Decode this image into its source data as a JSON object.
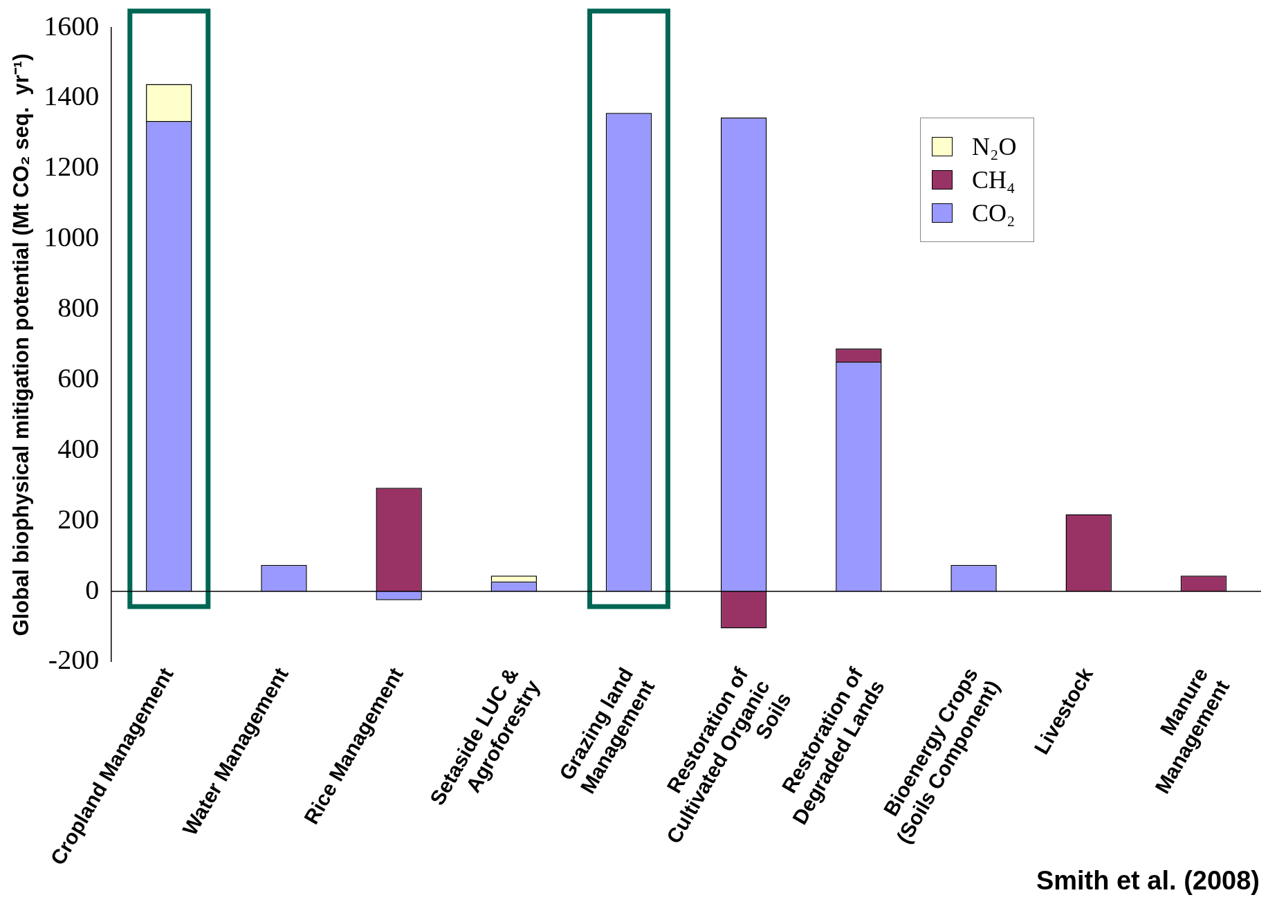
{
  "chart_data": {
    "type": "bar",
    "stacked": true,
    "categories": [
      "Cropland Management",
      "Water Management",
      "Rice Management",
      "Setaside LUC &\nAgroforestry",
      "Grazing land\nManagement",
      "Restoration of\nCultivated Organic\nSoils",
      "Restoration of\nDegraded Lands",
      "Bioenergy Crops\n(Soils Component)",
      "Livestock",
      "Manure\nManagement"
    ],
    "series": [
      {
        "name": "CO₂",
        "color": "#9999ff",
        "values": [
          1335,
          75,
          -25,
          28,
          1358,
          1345,
          652,
          75,
          null,
          null
        ]
      },
      {
        "name": "CH₄",
        "color": "#993366",
        "values": [
          null,
          null,
          294,
          null,
          null,
          -105,
          37,
          null,
          219,
          45
        ]
      },
      {
        "name": "N₂O",
        "color": "#ffffcc",
        "values": [
          105,
          null,
          null,
          17,
          null,
          null,
          null,
          null,
          null,
          null
        ]
      }
    ],
    "ylabel": "Global biophysical mitigation potential (Mt CO₂ seq.  yr⁻¹)",
    "ylim": [
      -200,
      1600
    ],
    "yticks": [
      -200,
      0,
      200,
      400,
      600,
      800,
      1000,
      1200,
      1400,
      1600
    ],
    "legend": "top right",
    "bands": [
      {
        "axis": "x",
        "from": "Cropland Management",
        "to": "Cropland Management"
      },
      {
        "axis": "x",
        "from": "Grazing land\nManagement",
        "to": "Grazing land\nManagement"
      }
    ],
    "annotations": [
      "Smith et al. (2008)"
    ]
  }
}
